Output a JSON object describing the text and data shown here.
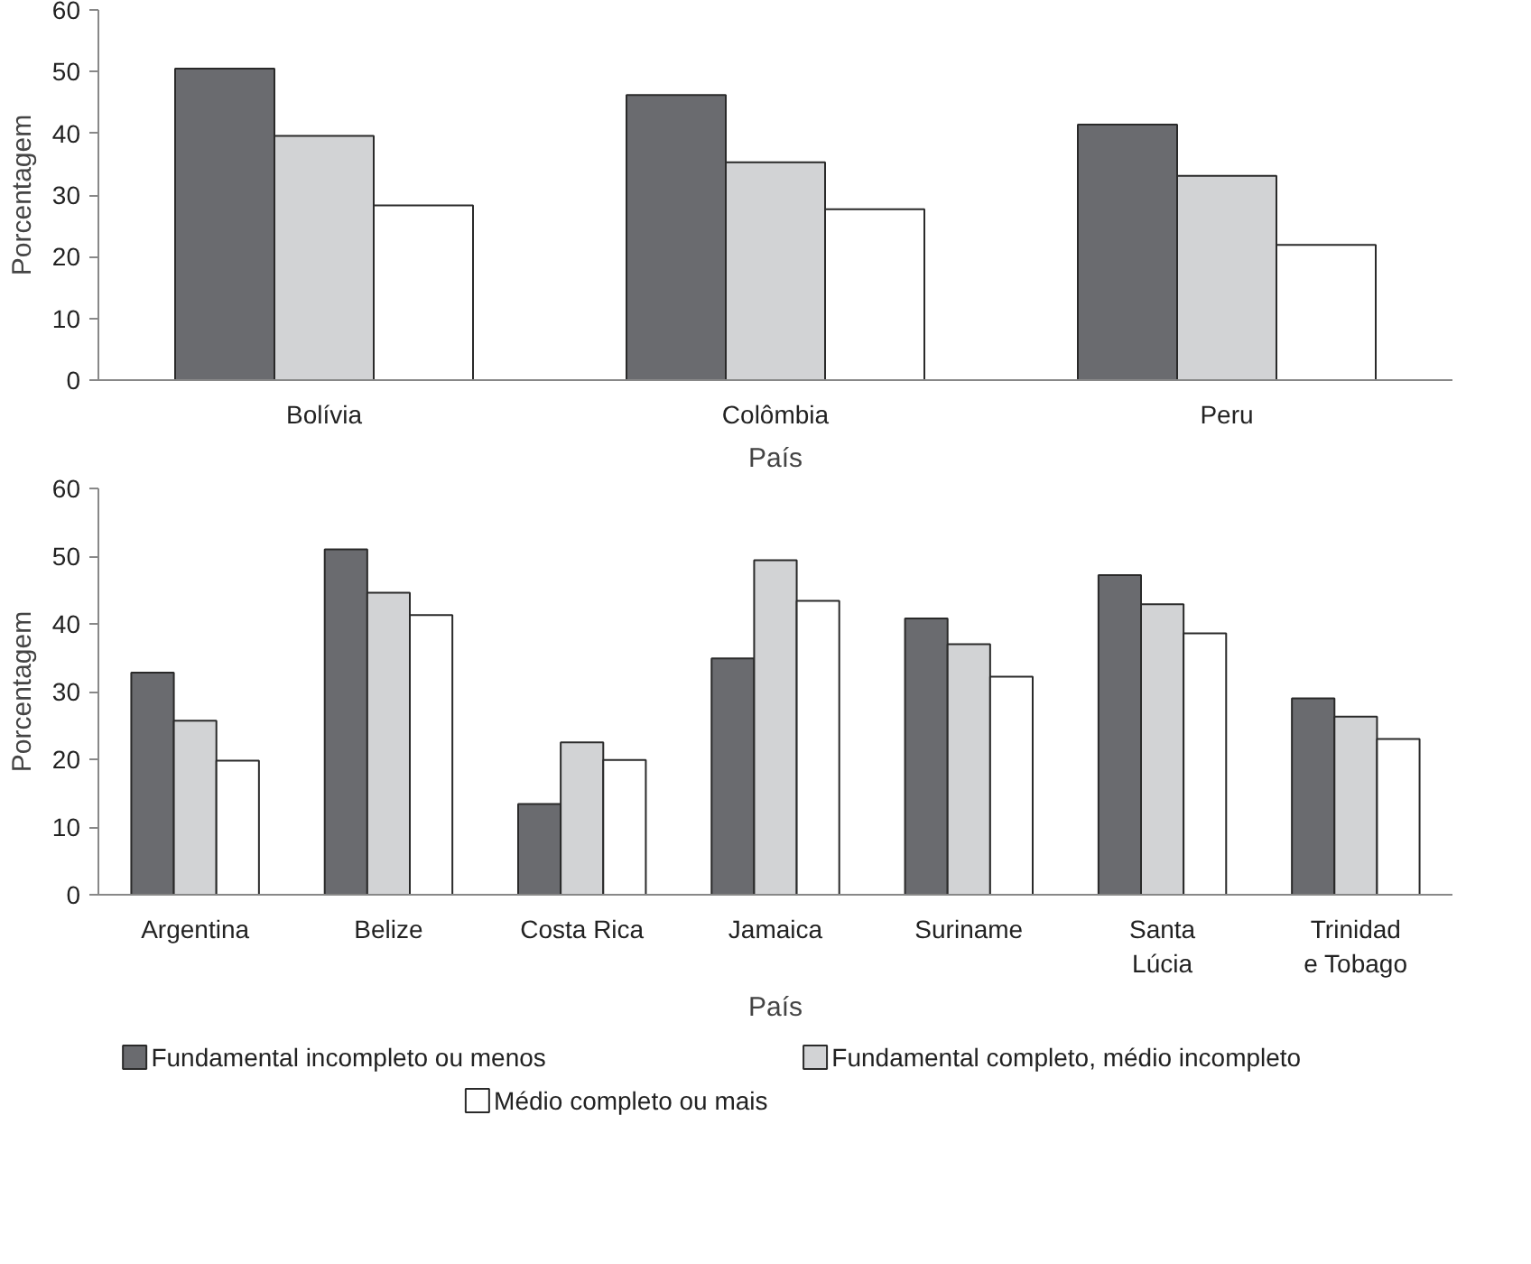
{
  "chart_data": [
    {
      "type": "bar",
      "xlabel": "País",
      "ylabel": "Porcentagem",
      "categories": [
        "Bolívia",
        "Colômbia",
        "Peru"
      ],
      "ylim": [
        0,
        60
      ],
      "yticks": [
        0,
        10,
        20,
        30,
        40,
        50,
        60
      ],
      "grid": false,
      "legend": false,
      "series": [
        {
          "color": "#6a6b6f",
          "values": [
            50.5,
            46.2,
            41.4
          ]
        },
        {
          "color": "#d2d3d5",
          "values": [
            39.6,
            35.3,
            33.1
          ]
        },
        {
          "color": "#ffffff",
          "values": [
            28.3,
            27.7,
            21.9
          ]
        }
      ]
    },
    {
      "type": "bar",
      "xlabel": "País",
      "ylabel": "Porcentagem",
      "categories": [
        "Argentina",
        "Belize",
        "Costa Rica",
        "Jamaica",
        "Suriname",
        "Santa\nLúcia",
        "Trinidad\ne Tobago"
      ],
      "ylim": [
        0,
        60
      ],
      "yticks": [
        0,
        10,
        20,
        30,
        40,
        50,
        60
      ],
      "grid": false,
      "legend": "bottom",
      "series": [
        {
          "name": "Fundamental incompleto ou menos",
          "color": "#6a6b6f",
          "values": [
            32.8,
            51.0,
            13.4,
            34.9,
            40.8,
            47.2,
            29.0
          ]
        },
        {
          "name": "Fundamental completo, médio incompleto",
          "color": "#d2d3d5",
          "values": [
            25.7,
            44.6,
            22.5,
            49.4,
            37.0,
            42.9,
            26.3
          ]
        },
        {
          "name": "Médio completo ou mais",
          "color": "#ffffff",
          "values": [
            19.8,
            41.3,
            19.9,
            43.4,
            32.2,
            38.6,
            23.0
          ]
        }
      ]
    }
  ]
}
